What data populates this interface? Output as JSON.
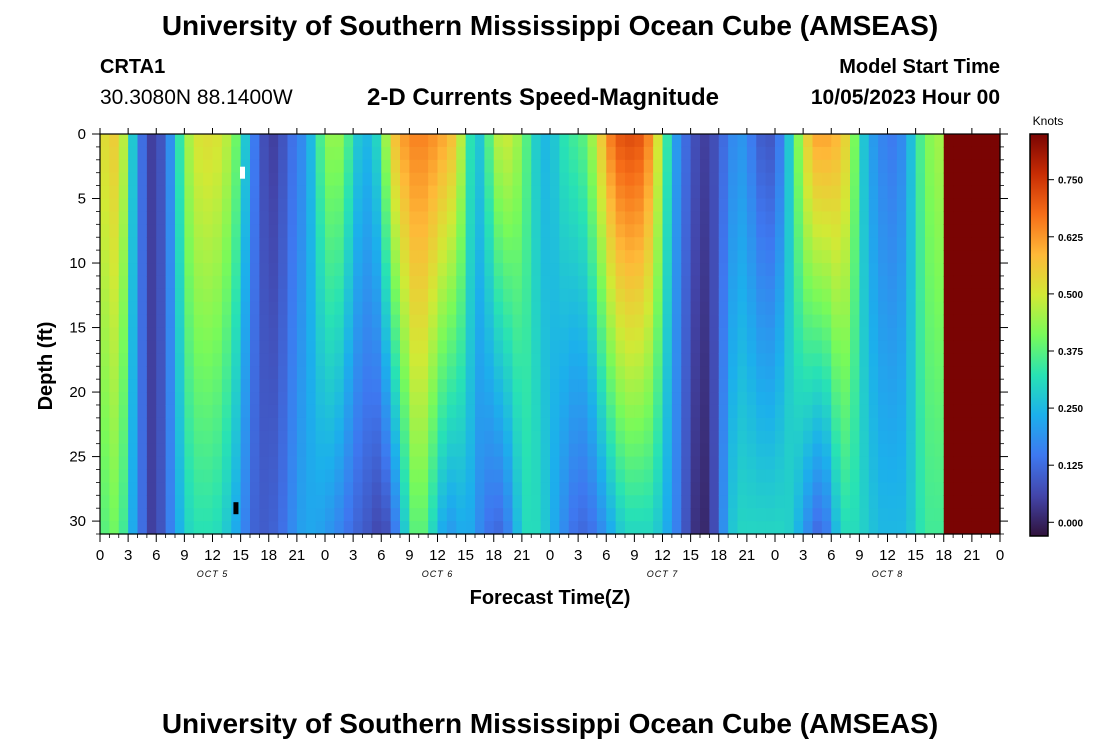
{
  "header": {
    "title": "University of Southern Mississippi Ocean Cube (AMSEAS)",
    "station_id": "CRTA1",
    "coordinates": "30.3080N  88.1400W",
    "subtitle": "2-D Currents Speed-Magnitude",
    "model_start_label": "Model Start Time",
    "model_start_value": "10/05/2023 Hour 00"
  },
  "footer": {
    "title": "University of Southern Mississippi Ocean Cube (AMSEAS)"
  },
  "chart_data": {
    "type": "heatmap",
    "title": "2-D Currents Speed-Magnitude",
    "xlabel": "Forecast Time(Z)",
    "ylabel": "Depth (ft)",
    "x_range_hours": [
      0,
      96
    ],
    "x_tick_step_hours": 3,
    "x_tick_labels": [
      "0",
      "3",
      "6",
      "9",
      "12",
      "15",
      "18",
      "21",
      "0",
      "3",
      "6",
      "9",
      "12",
      "15",
      "18",
      "21",
      "0",
      "3",
      "6",
      "9",
      "12",
      "15",
      "18",
      "21",
      "0",
      "3",
      "6",
      "9",
      "12",
      "15",
      "18",
      "21",
      "0"
    ],
    "date_labels": [
      {
        "label": "OCT 5",
        "hour": 12
      },
      {
        "label": "OCT 6",
        "hour": 36
      },
      {
        "label": "OCT 7",
        "hour": 60
      },
      {
        "label": "OCT 8",
        "hour": 84
      }
    ],
    "y_range_ft": [
      0,
      31
    ],
    "y_ticks": [
      0,
      5,
      10,
      15,
      20,
      25,
      30
    ],
    "colorbar": {
      "unit": "Knots",
      "min": -0.03,
      "max": 0.85,
      "ticks": [
        "0.750",
        "0.625",
        "0.500",
        "0.375",
        "0.250",
        "0.125",
        "0.000"
      ],
      "tick_values": [
        0.75,
        0.625,
        0.5,
        0.375,
        0.25,
        0.125,
        0.0
      ]
    },
    "speed_profile_knots": {
      "hours": [
        0,
        1,
        2,
        3,
        4,
        4.7,
        5.5,
        6,
        7,
        8,
        9,
        10,
        11,
        12,
        13,
        14,
        15,
        16,
        17,
        18,
        19,
        20,
        21,
        22,
        23,
        24,
        25,
        26,
        27,
        28,
        29,
        30,
        31,
        32,
        33,
        34,
        35,
        36,
        37,
        38,
        39,
        40,
        41,
        42,
        43,
        44,
        45,
        46,
        47,
        48,
        49,
        50,
        51,
        52,
        53,
        54,
        55,
        56,
        57,
        58,
        59,
        60,
        61,
        62,
        63,
        64,
        65,
        66,
        67,
        68,
        69,
        70,
        71,
        72,
        73,
        74,
        75,
        76,
        77,
        78,
        79,
        80,
        81,
        82,
        83,
        84,
        85,
        86,
        87,
        88,
        89,
        90,
        91,
        92,
        93,
        94,
        95,
        96
      ],
      "surface": [
        0.5,
        0.55,
        0.55,
        0.4,
        0.15,
        0.12,
        0.05,
        0.05,
        0.12,
        0.25,
        0.42,
        0.5,
        0.52,
        0.52,
        0.5,
        0.45,
        0.35,
        0.2,
        0.1,
        0.05,
        0.05,
        0.12,
        0.15,
        0.2,
        0.3,
        0.42,
        0.45,
        0.42,
        0.3,
        0.25,
        0.25,
        0.35,
        0.55,
        0.6,
        0.65,
        0.65,
        0.65,
        0.62,
        0.6,
        0.55,
        0.4,
        0.25,
        0.3,
        0.45,
        0.5,
        0.48,
        0.42,
        0.32,
        0.25,
        0.25,
        0.3,
        0.35,
        0.35,
        0.4,
        0.5,
        0.62,
        0.7,
        0.72,
        0.72,
        0.7,
        0.6,
        0.42,
        0.25,
        0.15,
        0.1,
        0.05,
        0.05,
        0.1,
        0.15,
        0.2,
        0.18,
        0.12,
        0.08,
        0.1,
        0.2,
        0.35,
        0.5,
        0.6,
        0.62,
        0.6,
        0.58,
        0.5,
        0.32,
        0.22,
        0.18,
        0.15,
        0.15,
        0.2,
        0.32,
        0.4,
        0.45,
        0.45
      ],
      "bottom": [
        0.35,
        0.4,
        0.4,
        0.3,
        0.15,
        0.12,
        0.05,
        0.05,
        0.12,
        0.2,
        0.28,
        0.32,
        0.32,
        0.32,
        0.3,
        0.25,
        0.2,
        0.12,
        0.1,
        0.1,
        0.12,
        0.15,
        0.2,
        0.22,
        0.22,
        0.2,
        0.18,
        0.15,
        0.12,
        0.1,
        0.08,
        0.05,
        0.1,
        0.2,
        0.35,
        0.4,
        0.35,
        0.25,
        0.2,
        0.2,
        0.25,
        0.2,
        0.15,
        0.12,
        0.12,
        0.2,
        0.3,
        0.32,
        0.3,
        0.25,
        0.2,
        0.15,
        0.12,
        0.12,
        0.15,
        0.2,
        0.25,
        0.3,
        0.3,
        0.3,
        0.3,
        0.25,
        0.2,
        0.12,
        0.05,
        0.0,
        0.02,
        0.12,
        0.25,
        0.3,
        0.3,
        0.3,
        0.3,
        0.3,
        0.3,
        0.28,
        0.2,
        0.15,
        0.1,
        0.2,
        0.3,
        0.32,
        0.3,
        0.28,
        0.25,
        0.25,
        0.25,
        0.25,
        0.3,
        0.35,
        0.35,
        0.35
      ]
    },
    "markers": [
      {
        "hour": 15.2,
        "depth_ft": 3
      },
      {
        "hour": 14.5,
        "depth_ft": 29
      }
    ]
  }
}
